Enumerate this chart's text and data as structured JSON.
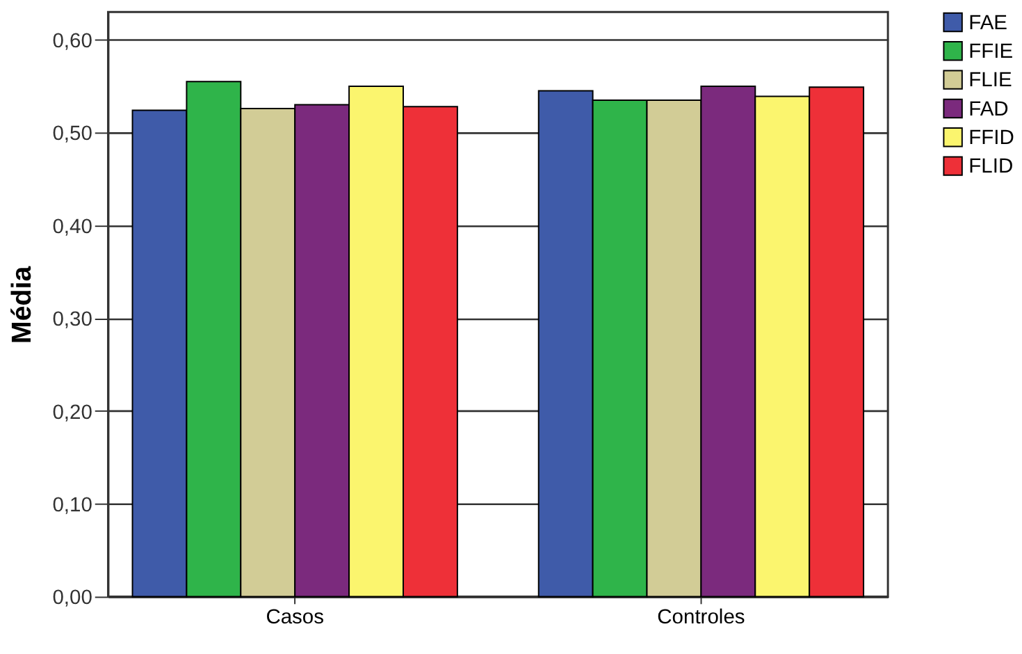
{
  "chart_data": {
    "type": "bar",
    "ylabel": "Média",
    "categories": [
      "Casos",
      "Controles"
    ],
    "series": [
      {
        "name": "FAE",
        "color": "#3f5ba9",
        "values": [
          0.524,
          0.545
        ]
      },
      {
        "name": "FFIE",
        "color": "#2fb44a",
        "values": [
          0.555,
          0.535
        ]
      },
      {
        "name": "FLIE",
        "color": "#d2cc96",
        "values": [
          0.526,
          0.535
        ]
      },
      {
        "name": "FAD",
        "color": "#7b2a7d",
        "values": [
          0.53,
          0.55
        ]
      },
      {
        "name": "FFID",
        "color": "#fbf56e",
        "values": [
          0.55,
          0.539
        ]
      },
      {
        "name": "FLID",
        "color": "#ee3038",
        "values": [
          0.528,
          0.549
        ]
      }
    ],
    "ylim": [
      0,
      0.63
    ],
    "yticks": [
      {
        "value": 0,
        "label": "0,00"
      },
      {
        "value": 0.1,
        "label": "0,10"
      },
      {
        "value": 0.2,
        "label": "0,20"
      },
      {
        "value": 0.3,
        "label": "0,30"
      },
      {
        "value": 0.4,
        "label": "0,40"
      },
      {
        "value": 0.5,
        "label": "0,50"
      },
      {
        "value": 0.6,
        "label": "0,60"
      }
    ],
    "grid": "y",
    "legend": "top right"
  }
}
